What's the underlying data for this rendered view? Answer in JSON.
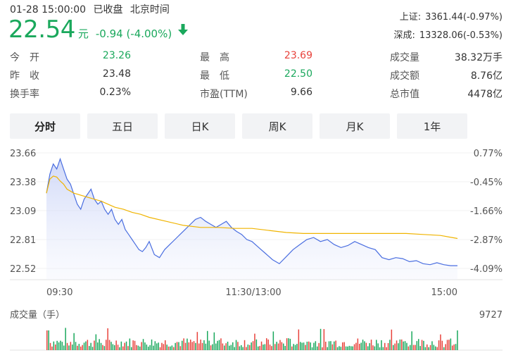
{
  "header": {
    "datetime": "01-28 15:00:00",
    "status": "已收盘",
    "timezone": "北京时间",
    "price": "22.54",
    "unit": "元",
    "change": "-0.94 (-4.00%)",
    "arrow_icon": "down-arrow",
    "up_color": "#e8423b",
    "down_color": "#1aa85c"
  },
  "indices": [
    {
      "name": "上证:",
      "value": "3361.44(-0.97%)"
    },
    {
      "name": "深成:",
      "value": "13328.06(-0.53%)"
    }
  ],
  "stats": {
    "open_label": "今　开",
    "open": "23.26",
    "prev_label": "昨　收",
    "prev": "23.48",
    "turnover_label": "换手率",
    "turnover": "0.23%",
    "high_label": "最　高",
    "high": "23.69",
    "low_label": "最　低",
    "low": "22.50",
    "pe_label": "市盈(TTM)",
    "pe": "9.66",
    "volume_label": "成交量",
    "volume": "38.32万手",
    "amount_label": "成交额",
    "amount": "8.76亿",
    "mktcap_label": "总市值",
    "mktcap": "4478亿"
  },
  "tabs": [
    {
      "label": "分时",
      "active": true
    },
    {
      "label": "五日"
    },
    {
      "label": "日K"
    },
    {
      "label": "周K"
    },
    {
      "label": "月K"
    },
    {
      "label": "1年"
    }
  ],
  "chart_data": {
    "type": "line",
    "price_ticks": [
      "23.66",
      "23.38",
      "23.09",
      "22.81",
      "22.52"
    ],
    "pct_ticks": [
      "0.77%",
      "-0.45%",
      "-1.66%",
      "-2.87%",
      "-4.09%"
    ],
    "x_ticks": [
      "09:30",
      "11:30/13:00",
      "15:00"
    ],
    "ylim": [
      22.52,
      23.66
    ],
    "volume_label": "成交量（手）",
    "volume_max": "9727",
    "price_color": "#4a6ee0",
    "avg_color": "#f0b400",
    "series": [
      {
        "x": [
          0,
          2,
          4,
          6,
          8,
          10,
          12,
          14,
          16,
          18,
          20,
          22,
          24,
          26,
          28,
          30,
          32,
          34,
          36,
          38,
          40,
          42,
          44,
          46,
          48,
          50,
          52,
          54,
          56,
          58,
          60,
          63,
          66,
          69,
          72,
          75,
          78,
          81,
          84,
          87,
          90,
          93,
          96,
          99,
          102,
          105,
          108,
          111,
          114,
          117,
          120,
          124,
          128,
          132,
          136,
          140,
          144,
          148,
          152,
          156,
          160,
          164,
          168,
          172,
          176,
          180,
          184,
          188,
          192,
          196,
          200,
          204,
          208,
          212,
          216,
          220,
          224,
          228,
          232,
          236,
          240
        ],
        "values": [
          23.26,
          23.45,
          23.55,
          23.5,
          23.6,
          23.5,
          23.4,
          23.35,
          23.25,
          23.15,
          23.1,
          23.2,
          23.25,
          23.3,
          23.2,
          23.15,
          23.18,
          23.1,
          23.05,
          23.1,
          23.0,
          22.95,
          23.0,
          22.9,
          22.85,
          22.8,
          22.75,
          22.7,
          22.68,
          22.72,
          22.78,
          22.65,
          22.62,
          22.7,
          22.75,
          22.8,
          22.85,
          22.9,
          22.95,
          23.0,
          23.02,
          22.98,
          22.95,
          22.92,
          22.95,
          22.98,
          22.92,
          22.88,
          22.85,
          22.8,
          22.78,
          22.72,
          22.66,
          22.6,
          22.56,
          22.63,
          22.7,
          22.75,
          22.8,
          22.82,
          22.78,
          22.8,
          22.75,
          22.72,
          22.74,
          22.78,
          22.75,
          22.72,
          22.7,
          22.62,
          22.6,
          22.62,
          22.61,
          22.58,
          22.59,
          22.56,
          22.55,
          22.57,
          22.55,
          22.54,
          22.54
        ]
      },
      {
        "x": [
          0,
          2,
          4,
          6,
          8,
          10,
          12,
          14,
          16,
          18,
          20,
          24,
          28,
          32,
          36,
          40,
          45,
          50,
          55,
          60,
          70,
          80,
          90,
          100,
          110,
          120,
          130,
          140,
          150,
          160,
          170,
          180,
          190,
          200,
          210,
          220,
          230,
          240
        ],
        "values": [
          23.26,
          23.4,
          23.43,
          23.42,
          23.38,
          23.35,
          23.3,
          23.28,
          23.26,
          23.25,
          23.24,
          23.22,
          23.2,
          23.18,
          23.15,
          23.12,
          23.1,
          23.07,
          23.05,
          23.02,
          22.98,
          22.94,
          22.92,
          22.92,
          22.91,
          22.91,
          22.89,
          22.87,
          22.86,
          22.86,
          22.86,
          22.86,
          22.86,
          22.86,
          22.86,
          22.85,
          22.84,
          22.81
        ]
      }
    ]
  }
}
